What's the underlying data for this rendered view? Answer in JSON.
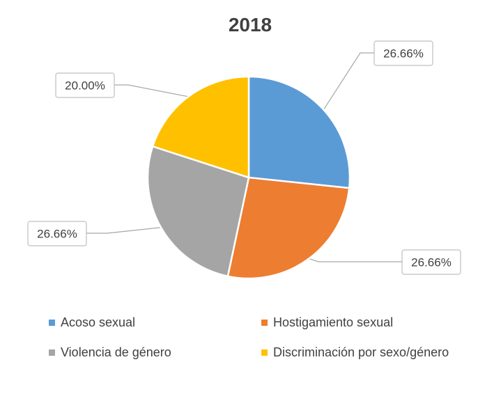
{
  "chart_data": {
    "type": "pie",
    "title": "2018",
    "categories": [
      "Acoso sexual",
      "Hostigamiento sexual",
      "Violencia de género",
      "Discriminación por sexo/género"
    ],
    "values": [
      26.66,
      26.66,
      26.66,
      20.0
    ],
    "data_labels": [
      "26.66%",
      "26.66%",
      "26.66%",
      "20.00%"
    ],
    "colors": [
      "#5B9BD5",
      "#ED7D31",
      "#A5A5A5",
      "#FFC000"
    ],
    "start_angle": "12 o'clock",
    "direction": "clockwise",
    "legend_position": "bottom"
  },
  "legend": {
    "items": [
      {
        "label": "Acoso sexual",
        "color": "#5B9BD5"
      },
      {
        "label": "Hostigamiento sexual",
        "color": "#ED7D31"
      },
      {
        "label": "Violencia de género",
        "color": "#A5A5A5"
      },
      {
        "label": "Discriminación por sexo/género",
        "color": "#FFC000"
      }
    ]
  }
}
